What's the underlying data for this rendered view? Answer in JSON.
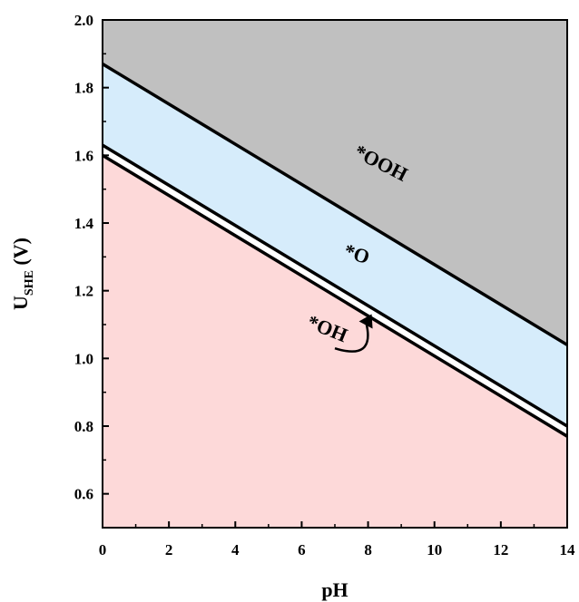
{
  "chart_data": {
    "type": "area",
    "xlabel": "pH",
    "ylabel_main": "U",
    "ylabel_sub": "SHE",
    "ylabel_unit": " (V)",
    "xlim": [
      0,
      14
    ],
    "ylim": [
      0.5,
      2.0
    ],
    "x_ticks": [
      "0",
      "2",
      "4",
      "6",
      "8",
      "10",
      "12",
      "14"
    ],
    "y_ticks": [
      "0.6",
      "0.8",
      "1.0",
      "1.2",
      "1.4",
      "1.6",
      "1.8",
      "2.0"
    ],
    "grid": false,
    "series": [
      {
        "x": [
          0,
          14
        ],
        "y": [
          1.87,
          1.04
        ]
      },
      {
        "x": [
          0,
          14
        ],
        "y": [
          1.63,
          0.8
        ]
      },
      {
        "x": [
          0,
          14
        ],
        "y": [
          1.6,
          0.77
        ]
      }
    ],
    "regions": [
      {
        "label": "*OOH",
        "color": "#c0c0c0"
      },
      {
        "label": "*O",
        "color": "#d6ecfb"
      },
      {
        "label": "*OH",
        "color": "#ffffff"
      },
      {
        "label": "",
        "color": "#fdd9d9"
      }
    ],
    "annotations": [
      {
        "text": "*OOH",
        "x": 8.3,
        "y": 1.56,
        "rotation_deg": 27
      },
      {
        "text": "*O",
        "x": 7.6,
        "y": 1.29,
        "rotation_deg": 18
      },
      {
        "text": "*OH",
        "x": 6.7,
        "y": 1.07,
        "rotation_deg": 22
      }
    ]
  }
}
